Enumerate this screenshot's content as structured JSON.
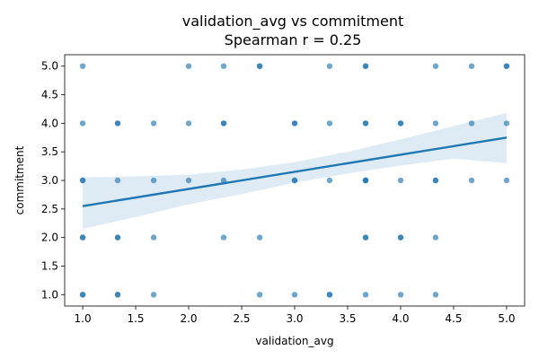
{
  "chart_data": {
    "type": "scatter",
    "title": "validation_avg vs commitment",
    "subtitle": "Spearman r = 0.25",
    "xlabel": "validation_avg",
    "ylabel": "commitment",
    "xlim": [
      0.83,
      5.17
    ],
    "ylim": [
      0.8,
      5.2
    ],
    "xticks": [
      "1.0",
      "1.5",
      "2.0",
      "2.5",
      "3.0",
      "3.5",
      "4.0",
      "4.5",
      "5.0"
    ],
    "yticks": [
      "1.0",
      "1.5",
      "2.0",
      "2.5",
      "3.0",
      "3.5",
      "4.0",
      "4.5",
      "5.0"
    ],
    "grid": false,
    "legend": "none",
    "colors": {
      "points": "#1f77b4",
      "line": "#1f77b4",
      "band": "#1f77b4"
    },
    "points": [
      [
        1.0,
        5
      ],
      [
        1.0,
        4
      ],
      [
        1.0,
        3
      ],
      [
        1.0,
        3
      ],
      [
        1.0,
        2
      ],
      [
        1.0,
        2
      ],
      [
        1.0,
        1
      ],
      [
        1.0,
        1
      ],
      [
        1.33,
        4
      ],
      [
        1.33,
        4
      ],
      [
        1.33,
        3
      ],
      [
        1.33,
        2
      ],
      [
        1.33,
        2
      ],
      [
        1.33,
        1
      ],
      [
        1.33,
        1
      ],
      [
        1.67,
        4
      ],
      [
        1.67,
        3
      ],
      [
        1.67,
        2
      ],
      [
        1.67,
        1
      ],
      [
        2.0,
        5
      ],
      [
        2.0,
        4
      ],
      [
        2.0,
        3
      ],
      [
        2.33,
        5
      ],
      [
        2.33,
        4
      ],
      [
        2.33,
        4
      ],
      [
        2.33,
        3
      ],
      [
        2.33,
        2
      ],
      [
        2.67,
        5
      ],
      [
        2.67,
        5
      ],
      [
        2.67,
        2
      ],
      [
        2.67,
        1
      ],
      [
        3.0,
        4
      ],
      [
        3.0,
        4
      ],
      [
        3.0,
        3
      ],
      [
        3.0,
        3
      ],
      [
        3.0,
        1
      ],
      [
        3.33,
        5
      ],
      [
        3.33,
        4
      ],
      [
        3.33,
        3
      ],
      [
        3.33,
        1
      ],
      [
        3.33,
        1
      ],
      [
        3.67,
        5
      ],
      [
        3.67,
        5
      ],
      [
        3.67,
        4
      ],
      [
        3.67,
        4
      ],
      [
        3.67,
        3
      ],
      [
        3.67,
        3
      ],
      [
        3.67,
        3
      ],
      [
        3.67,
        2
      ],
      [
        3.67,
        2
      ],
      [
        3.67,
        1
      ],
      [
        4.0,
        4
      ],
      [
        4.0,
        4
      ],
      [
        4.0,
        3
      ],
      [
        4.0,
        2
      ],
      [
        4.0,
        2
      ],
      [
        4.0,
        1
      ],
      [
        4.33,
        5
      ],
      [
        4.33,
        4
      ],
      [
        4.33,
        3
      ],
      [
        4.33,
        3
      ],
      [
        4.33,
        2
      ],
      [
        4.33,
        1
      ],
      [
        4.67,
        5
      ],
      [
        4.67,
        4
      ],
      [
        4.67,
        3
      ],
      [
        5.0,
        5
      ],
      [
        5.0,
        5
      ],
      [
        5.0,
        4
      ],
      [
        5.0,
        3
      ]
    ],
    "regression": {
      "x": [
        1.0,
        5.0
      ],
      "y": [
        2.55,
        3.75
      ]
    },
    "confidence_band": {
      "x": [
        1.0,
        1.5,
        2.0,
        2.5,
        3.0,
        3.5,
        4.0,
        4.5,
        5.0
      ],
      "upper": [
        3.05,
        3.07,
        3.1,
        3.19,
        3.32,
        3.5,
        3.72,
        3.95,
        4.18
      ],
      "lower": [
        2.15,
        2.36,
        2.58,
        2.76,
        2.96,
        3.12,
        3.26,
        3.38,
        3.3
      ]
    }
  }
}
